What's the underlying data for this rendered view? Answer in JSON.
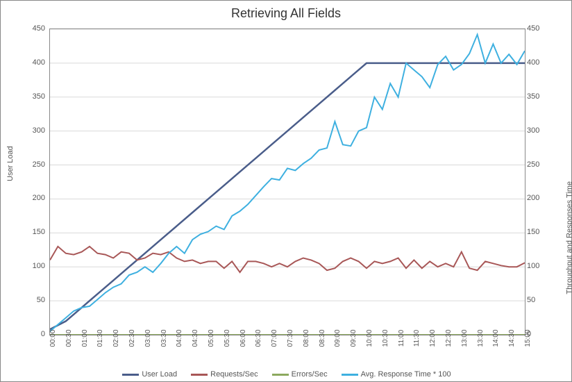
{
  "chart": {
    "type": "line",
    "title": "Retrieving All Fields",
    "title_fontsize": 18,
    "background_color": "#ffffff",
    "grid_color": "#d9d9d9",
    "border_color": "#888888",
    "y_left": {
      "label": "User Load",
      "min": 0,
      "max": 450,
      "step": 50,
      "ticks": [
        0,
        50,
        100,
        150,
        200,
        250,
        300,
        350,
        400,
        450
      ],
      "label_fontsize": 11
    },
    "y_right": {
      "label": "Throughput and Responses Time",
      "min": 0,
      "max": 450,
      "step": 50,
      "ticks": [
        0,
        50,
        100,
        150,
        200,
        250,
        300,
        350,
        400,
        450
      ],
      "label_fontsize": 11
    },
    "x": {
      "ticks": [
        "00:00",
        "00:30",
        "01:00",
        "01:30",
        "02:00",
        "02:30",
        "03:00",
        "03:30",
        "04:00",
        "04:30",
        "05:00",
        "05:30",
        "06:00",
        "06:30",
        "07:00",
        "07:30",
        "08:00",
        "08:30",
        "09:00",
        "09:30",
        "10:00",
        "10:30",
        "11:00",
        "11:30",
        "12:00",
        "12:30",
        "13:00",
        "13:30",
        "14:00",
        "14:30",
        "15:00"
      ],
      "label_fontsize": 10
    },
    "series": [
      {
        "name": "User Load",
        "color": "#4a5d8a",
        "line_width": 2.5,
        "axis": "left",
        "data": [
          8,
          20,
          40,
          60,
          80,
          100,
          120,
          140,
          160,
          180,
          200,
          220,
          240,
          260,
          280,
          300,
          320,
          340,
          360,
          380,
          400,
          400,
          400,
          400,
          400,
          400,
          400,
          400,
          400,
          400,
          400
        ]
      },
      {
        "name": "Requests/Sec",
        "color": "#a85757",
        "line_width": 2,
        "axis": "right",
        "data": [
          110,
          130,
          120,
          118,
          122,
          130,
          120,
          118,
          113,
          122,
          120,
          110,
          113,
          120,
          118,
          122,
          113,
          108,
          110,
          105,
          108,
          108,
          98,
          108,
          92,
          108,
          108,
          105,
          100,
          105,
          100,
          108,
          113,
          110,
          105,
          95,
          98,
          108,
          113,
          108,
          98,
          108,
          105,
          108,
          113,
          98,
          110,
          98,
          108,
          100,
          105,
          100,
          122,
          98,
          95,
          108,
          105,
          102,
          100,
          100,
          106
        ]
      },
      {
        "name": "Errors/Sec",
        "color": "#8ca95e",
        "line_width": 2,
        "axis": "right",
        "data": [
          0,
          0,
          0,
          0,
          0,
          0,
          0,
          0,
          0,
          0,
          0,
          0,
          0,
          0,
          0,
          0,
          0,
          0,
          0,
          0,
          0,
          0,
          0,
          0,
          0,
          0,
          0,
          0,
          0,
          0,
          0
        ]
      },
      {
        "name": "Avg. Response Time * 100",
        "color": "#3eb0e0",
        "line_width": 2,
        "axis": "right",
        "data": [
          5,
          15,
          25,
          35,
          40,
          42,
          52,
          62,
          70,
          75,
          88,
          92,
          100,
          92,
          105,
          120,
          130,
          120,
          140,
          148,
          152,
          160,
          155,
          175,
          182,
          192,
          205,
          218,
          230,
          228,
          245,
          242,
          252,
          260,
          272,
          275,
          314,
          280,
          278,
          300,
          305,
          350,
          332,
          370,
          350,
          400,
          390,
          380,
          364,
          398,
          410,
          390,
          398,
          414,
          442,
          400,
          428,
          400,
          413,
          398,
          418
        ]
      }
    ],
    "legend": {
      "position": "bottom",
      "items": [
        "User Load",
        "Requests/Sec",
        "Errors/Sec",
        "Avg. Response Time * 100"
      ]
    }
  }
}
